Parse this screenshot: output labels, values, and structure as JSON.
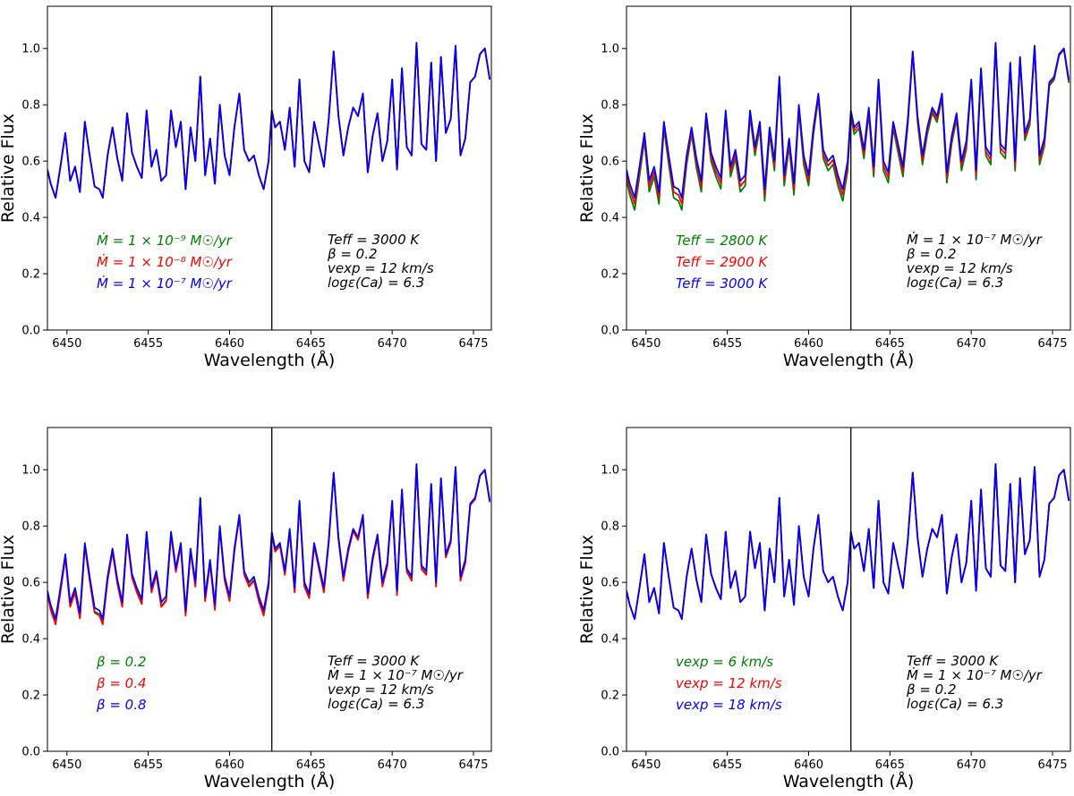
{
  "chart_data": [
    {
      "type": "line",
      "xlabel": "Wavelength (Å)",
      "ylabel": "Relative Flux",
      "xlim": [
        6448.8,
        6476.1
      ],
      "ylim": [
        0.0,
        1.15
      ],
      "xticks": [
        6450,
        6455,
        6460,
        6465,
        6470,
        6475
      ],
      "yticks": [
        0.0,
        0.2,
        0.4,
        0.6,
        0.8,
        1.0
      ],
      "xtick_labels": [
        "6450",
        "6455",
        "6460",
        "6465",
        "6470",
        "6475"
      ],
      "ytick_labels": [
        "0.0",
        "0.2",
        "0.4",
        "0.6",
        "0.8",
        "1.0"
      ],
      "vline_x": 6462.6,
      "legend_location": "lower-left",
      "legend": [
        {
          "text": "Ṁ = 1 × 10⁻⁹ M☉/yr",
          "color": "#008000"
        },
        {
          "text": "Ṁ = 1 × 10⁻⁸ M☉/yr",
          "color": "#ff0000"
        },
        {
          "text": "Ṁ = 1 × 10⁻⁷ M☉/yr",
          "color": "#0000ff"
        }
      ],
      "params": [
        "Teff = 3000 K",
        "β = 0.2",
        "vexp = 12 km/s",
        "logε(Ca) = 6.3"
      ],
      "series": [
        {
          "name": "Ṁ = 1 × 10⁻⁹ M☉/yr",
          "color": "#008000",
          "dy": 0.0
        },
        {
          "name": "Ṁ = 1 × 10⁻⁸ M☉/yr",
          "color": "#ff0000",
          "dy": 0.0
        },
        {
          "name": "Ṁ = 1 × 10⁻⁷ M☉/yr",
          "color": "#0000ff",
          "dy": 0.0
        }
      ]
    },
    {
      "type": "line",
      "xlabel": "Wavelength (Å)",
      "ylabel": "Relative Flux",
      "xlim": [
        6448.8,
        6476.1
      ],
      "ylim": [
        0.0,
        1.15
      ],
      "xticks": [
        6450,
        6455,
        6460,
        6465,
        6470,
        6475
      ],
      "yticks": [
        0.0,
        0.2,
        0.4,
        0.6,
        0.8,
        1.0
      ],
      "xtick_labels": [
        "6450",
        "6455",
        "6460",
        "6465",
        "6470",
        "6475"
      ],
      "ytick_labels": [
        "0.0",
        "0.2",
        "0.4",
        "0.6",
        "0.8",
        "1.0"
      ],
      "vline_x": 6462.6,
      "legend_location": "lower-left",
      "legend": [
        {
          "text": "Teff = 2800 K",
          "color": "#008000"
        },
        {
          "text": "Teff = 2900 K",
          "color": "#ff0000"
        },
        {
          "text": "Teff = 3000 K",
          "color": "#0000ff"
        }
      ],
      "params": [
        "Ṁ = 1 × 10⁻⁷ M☉/yr",
        "β = 0.2",
        "vexp = 12 km/s",
        "logε(Ca) = 6.3"
      ],
      "series": [
        {
          "name": "Teff = 2800 K",
          "color": "#008000",
          "dy": 0.045
        },
        {
          "name": "Teff = 2900 K",
          "color": "#ff0000",
          "dy": 0.022
        },
        {
          "name": "Teff = 3000 K",
          "color": "#0000ff",
          "dy": 0.0
        }
      ]
    },
    {
      "type": "line",
      "xlabel": "Wavelength (Å)",
      "ylabel": "Relative Flux",
      "xlim": [
        6448.8,
        6476.1
      ],
      "ylim": [
        0.0,
        1.15
      ],
      "xticks": [
        6450,
        6455,
        6460,
        6465,
        6470,
        6475
      ],
      "yticks": [
        0.0,
        0.2,
        0.4,
        0.6,
        0.8,
        1.0
      ],
      "xtick_labels": [
        "6450",
        "6455",
        "6460",
        "6465",
        "6470",
        "6475"
      ],
      "ytick_labels": [
        "0.0",
        "0.2",
        "0.4",
        "0.6",
        "0.8",
        "1.0"
      ],
      "vline_x": 6462.6,
      "legend_location": "lower-left",
      "legend": [
        {
          "text": "β = 0.2",
          "color": "#008000"
        },
        {
          "text": "β = 0.4",
          "color": "#ff0000"
        },
        {
          "text": "β = 0.8",
          "color": "#0000ff"
        }
      ],
      "params": [
        "Teff = 3000 K",
        "Ṁ = 1 × 10⁻⁷ M☉/yr",
        "vexp = 12 km/s",
        "logε(Ca) = 6.3"
      ],
      "series": [
        {
          "name": "β = 0.2",
          "color": "#008000",
          "dy": 0.015
        },
        {
          "name": "β = 0.4",
          "color": "#ff0000",
          "dy": 0.02
        },
        {
          "name": "β = 0.8",
          "color": "#0000ff",
          "dy": 0.0
        }
      ]
    },
    {
      "type": "line",
      "xlabel": "Wavelength (Å)",
      "ylabel": "Relative Flux",
      "xlim": [
        6448.8,
        6476.1
      ],
      "ylim": [
        0.0,
        1.15
      ],
      "xticks": [
        6450,
        6455,
        6460,
        6465,
        6470,
        6475
      ],
      "yticks": [
        0.0,
        0.2,
        0.4,
        0.6,
        0.8,
        1.0
      ],
      "xtick_labels": [
        "6450",
        "6455",
        "6460",
        "6465",
        "6470",
        "6475"
      ],
      "ytick_labels": [
        "0.0",
        "0.2",
        "0.4",
        "0.6",
        "0.8",
        "1.0"
      ],
      "vline_x": 6462.6,
      "legend_location": "lower-left",
      "legend": [
        {
          "text": "vexp = 6 km/s",
          "color": "#008000"
        },
        {
          "text": "vexp = 12 km/s",
          "color": "#ff0000"
        },
        {
          "text": "vexp = 18 km/s",
          "color": "#0000ff"
        }
      ],
      "params": [
        "Teff = 3000 K",
        "Ṁ = 1 × 10⁻⁷ M☉/yr",
        "β = 0.2",
        "logε(Ca) = 6.3"
      ],
      "series": [
        {
          "name": "vexp = 6 km/s",
          "color": "#008000",
          "dy": 0.0
        },
        {
          "name": "vexp = 12 km/s",
          "color": "#ff0000",
          "dy": 0.0
        },
        {
          "name": "vexp = 18 km/s",
          "color": "#0000ff",
          "dy": 0.0
        }
      ]
    }
  ],
  "spectrum": {
    "x": [
      6448.8,
      6449.0,
      6449.3,
      6449.6,
      6449.9,
      6450.2,
      6450.5,
      6450.8,
      6451.1,
      6451.4,
      6451.7,
      6452.0,
      6452.2,
      6452.5,
      6452.8,
      6453.1,
      6453.4,
      6453.7,
      6454.0,
      6454.3,
      6454.6,
      6454.9,
      6455.2,
      6455.5,
      6455.8,
      6456.1,
      6456.4,
      6456.7,
      6457.0,
      6457.3,
      6457.6,
      6457.9,
      6458.2,
      6458.5,
      6458.8,
      6459.1,
      6459.4,
      6459.7,
      6460.0,
      6460.3,
      6460.6,
      6460.9,
      6461.2,
      6461.5,
      6461.8,
      6462.1,
      6462.4,
      6462.6,
      6462.8,
      6463.1,
      6463.4,
      6463.7,
      6464.0,
      6464.3,
      6464.6,
      6464.9,
      6465.2,
      6465.5,
      6465.8,
      6466.1,
      6466.4,
      6466.7,
      6467.0,
      6467.3,
      6467.6,
      6467.9,
      6468.2,
      6468.5,
      6468.8,
      6469.1,
      6469.4,
      6469.7,
      6470.0,
      6470.3,
      6470.6,
      6470.9,
      6471.2,
      6471.5,
      6471.8,
      6472.1,
      6472.4,
      6472.7,
      6473.0,
      6473.3,
      6473.6,
      6473.9,
      6474.2,
      6474.5,
      6474.8,
      6475.1,
      6475.4,
      6475.7,
      6476.0
    ],
    "y": [
      0.57,
      0.52,
      0.47,
      0.58,
      0.7,
      0.53,
      0.58,
      0.49,
      0.74,
      0.62,
      0.51,
      0.5,
      0.47,
      0.62,
      0.72,
      0.61,
      0.53,
      0.77,
      0.63,
      0.58,
      0.54,
      0.78,
      0.58,
      0.64,
      0.53,
      0.55,
      0.78,
      0.65,
      0.74,
      0.5,
      0.72,
      0.6,
      0.9,
      0.55,
      0.68,
      0.52,
      0.8,
      0.62,
      0.55,
      0.72,
      0.84,
      0.64,
      0.6,
      0.62,
      0.55,
      0.5,
      0.6,
      0.78,
      0.72,
      0.74,
      0.64,
      0.79,
      0.58,
      0.89,
      0.6,
      0.56,
      0.74,
      0.66,
      0.58,
      0.75,
      0.99,
      0.76,
      0.62,
      0.72,
      0.79,
      0.76,
      0.84,
      0.56,
      0.69,
      0.77,
      0.6,
      0.67,
      0.89,
      0.57,
      0.93,
      0.65,
      0.62,
      1.02,
      0.66,
      0.64,
      0.95,
      0.6,
      0.97,
      0.7,
      0.75,
      1.01,
      0.62,
      0.68,
      0.88,
      0.9,
      0.98,
      1.0,
      0.89
    ]
  }
}
